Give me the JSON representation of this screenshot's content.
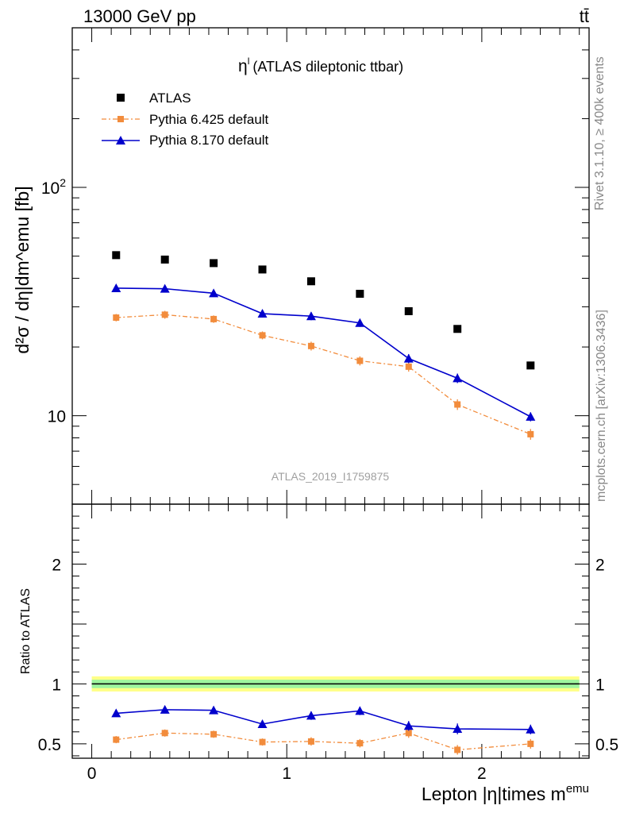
{
  "header": {
    "left": "13000 GeV pp",
    "right": "tt̄"
  },
  "side_notes": {
    "top": "Rivet 3.1.10, ≥ 400k events",
    "bottom": "mcplots.cern.ch [arXiv:1306.3436]"
  },
  "chart_data": [
    {
      "type": "scatter",
      "panel": "main",
      "title_symbol": "η",
      "title_sup": "l",
      "title_rest": "(ATLAS dileptonic ttbar)",
      "watermark": "ATLAS_2019_I1759875",
      "ylabel": "d²σ / dη|dm^emu [fb]",
      "yscale": "log",
      "xlim": [
        -0.1,
        2.55
      ],
      "ylim": [
        4.1,
        500
      ],
      "y_tick_labels": [
        {
          "value": 10,
          "text": "10"
        },
        {
          "value": 100,
          "text": "10²"
        }
      ],
      "grid": false,
      "legend_position": "top-left",
      "x": [
        0.125,
        0.375,
        0.625,
        0.875,
        1.125,
        1.375,
        1.625,
        1.875,
        2.25
      ],
      "series": [
        {
          "name": "ATLAS",
          "style": "markers",
          "color": "#000000",
          "values": [
            50.5,
            48.3,
            46.6,
            43.7,
            38.8,
            34.2,
            28.7,
            24.0,
            16.6
          ]
        },
        {
          "name": "Pythia 6.425 default",
          "style": "dash-dot line with square markers",
          "color": "#f28c3c",
          "values": [
            26.9,
            27.7,
            26.5,
            22.5,
            20.2,
            17.4,
            16.4,
            11.2,
            8.3
          ],
          "errors": [
            1.0,
            1.1,
            1.0,
            0.9,
            0.9,
            0.8,
            0.8,
            0.6,
            0.45
          ]
        },
        {
          "name": "Pythia 8.170 default",
          "style": "solid line with triangle markers",
          "color": "#0000cc",
          "values": [
            36.2,
            36.0,
            34.4,
            28.0,
            27.3,
            25.5,
            17.8,
            14.6,
            9.9
          ],
          "errors": [
            1.3,
            1.3,
            1.2,
            1.1,
            1.1,
            1.0,
            0.8,
            0.7,
            0.45
          ]
        }
      ]
    },
    {
      "type": "scatter",
      "panel": "ratio",
      "ylabel": "Ratio to ATLAS",
      "xlabel_main": "Lepton |η|times m",
      "xlabel_sup": "emu",
      "xlim": [
        -0.1,
        2.55
      ],
      "ylim": [
        0.38,
        2.5
      ],
      "x_ticks": [
        0,
        1,
        2
      ],
      "y_ticks": [
        0.5,
        1,
        2
      ],
      "grid": false,
      "reference_band": {
        "value": 1.0,
        "outer": [
          0.937,
          1.063
        ],
        "inner": [
          0.965,
          1.035
        ],
        "outer_color": "#ffff88",
        "inner_color": "#9ef59e"
      },
      "x": [
        0.125,
        0.375,
        0.625,
        0.875,
        1.125,
        1.375,
        1.625,
        1.875,
        2.25
      ],
      "series": [
        {
          "name": "Pythia 6.425 default",
          "color": "#f28c3c",
          "values": [
            0.535,
            0.59,
            0.58,
            0.515,
            0.52,
            0.505,
            0.59,
            0.45,
            0.5
          ],
          "errors": [
            0.03,
            0.03,
            0.03,
            0.03,
            0.035,
            0.035,
            0.04,
            0.04,
            0.04
          ]
        },
        {
          "name": "Pythia 8.170 default",
          "color": "#0000cc",
          "values": [
            0.755,
            0.785,
            0.78,
            0.665,
            0.735,
            0.775,
            0.65,
            0.625,
            0.62
          ],
          "errors": [
            0.03,
            0.03,
            0.03,
            0.03,
            0.035,
            0.035,
            0.04,
            0.045,
            0.04
          ]
        }
      ]
    }
  ]
}
